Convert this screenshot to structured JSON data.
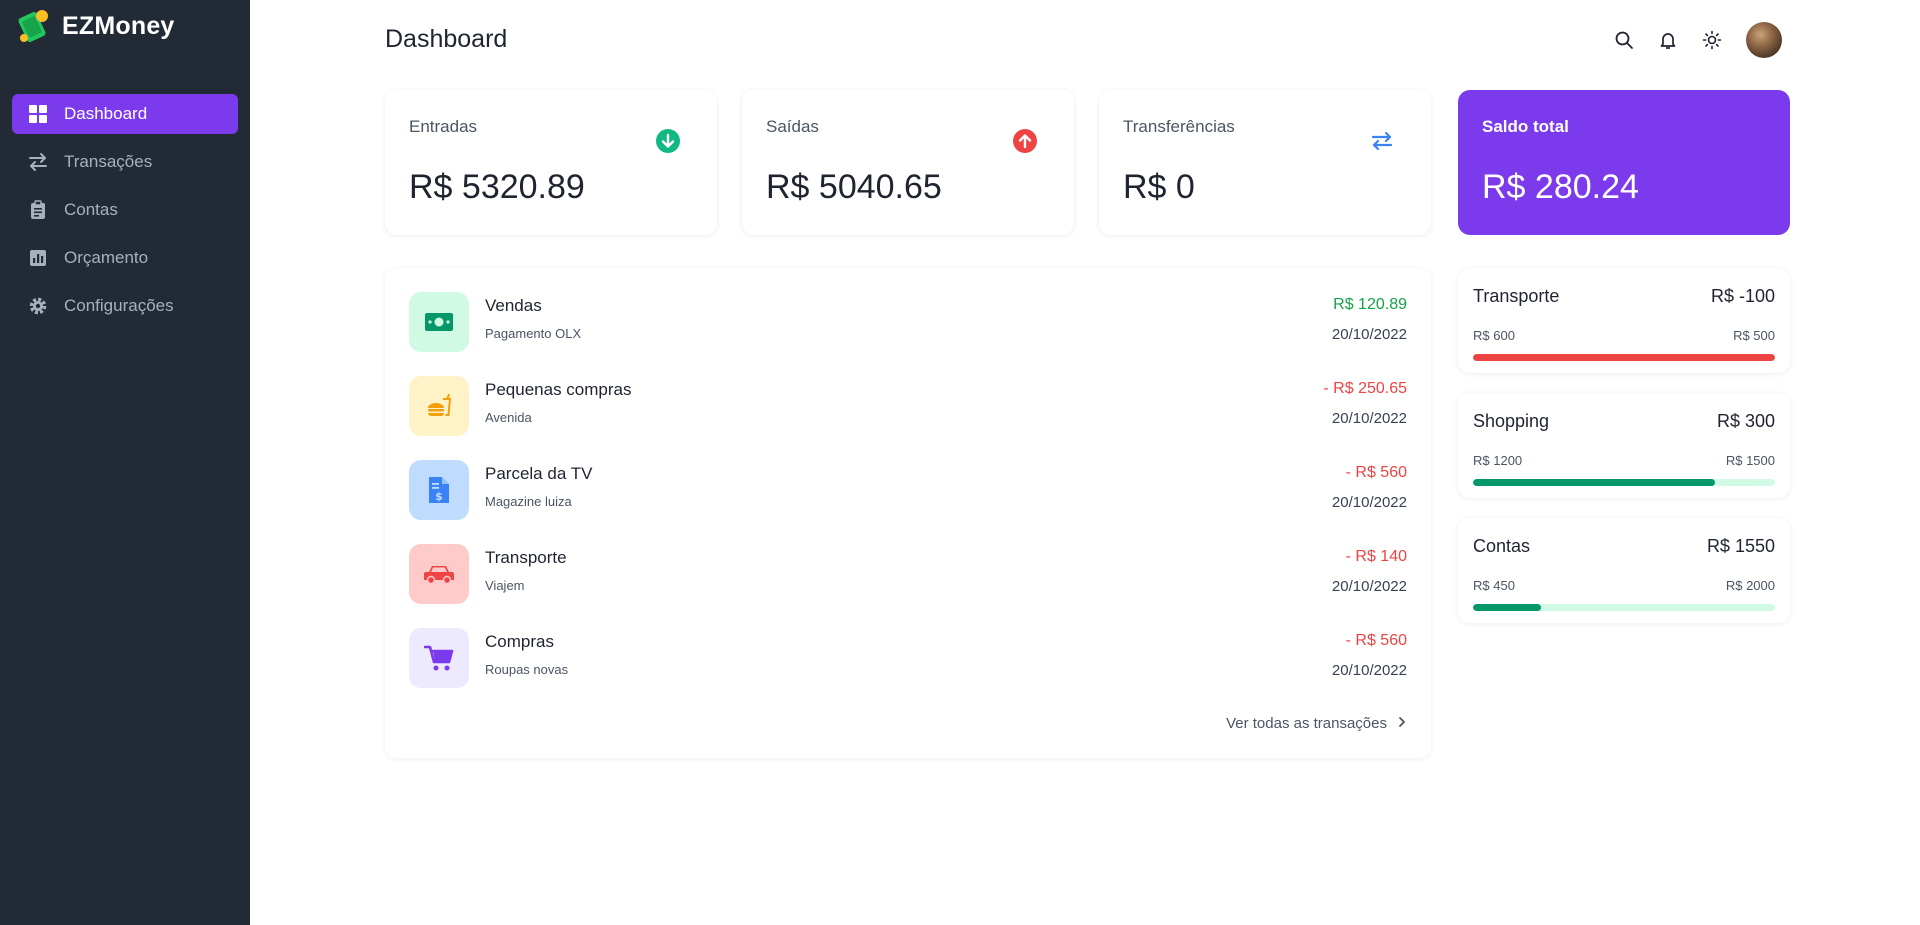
{
  "app": {
    "name": "EZMoney"
  },
  "sidebar": {
    "items": [
      {
        "label": "Dashboard",
        "icon": "grid-icon",
        "active": true
      },
      {
        "label": "Transações",
        "icon": "arrows-exchange-icon",
        "active": false
      },
      {
        "label": "Contas",
        "icon": "clipboard-icon",
        "active": false
      },
      {
        "label": "Orçamento",
        "icon": "bar-chart-icon",
        "active": false
      },
      {
        "label": "Configurações",
        "icon": "gear-icon",
        "active": false
      }
    ]
  },
  "header": {
    "title": "Dashboard",
    "icons": [
      "search-icon",
      "bell-icon",
      "sun-icon",
      "avatar"
    ]
  },
  "stats": {
    "entradas": {
      "label": "Entradas",
      "value": "R$ 5320.89",
      "icon": "arrow-down-circle-icon",
      "color": "#10b981"
    },
    "saidas": {
      "label": "Saídas",
      "value": "R$ 5040.65",
      "icon": "arrow-up-circle-icon",
      "color": "#ef4444"
    },
    "transferencias": {
      "label": "Transferências",
      "value": "R$ 0",
      "icon": "transfer-icon",
      "color": "#3b82f6"
    },
    "saldo": {
      "label": "Saldo total",
      "value": "R$ 280.24",
      "color": "#7c3aed"
    }
  },
  "transactions": [
    {
      "title": "Vendas",
      "subtitle": "Pagamento OLX",
      "amount": "R$ 120.89",
      "date": "20/10/2022",
      "type": "income",
      "icon": "money-icon",
      "bg": "#d1fae5",
      "fg": "#059669"
    },
    {
      "title": "Pequenas compras",
      "subtitle": "Avenida",
      "amount": "- R$ 250.65",
      "date": "20/10/2022",
      "type": "expense",
      "icon": "fastfood-icon",
      "bg": "#fef3c7",
      "fg": "#f59e0b"
    },
    {
      "title": "Parcela da TV",
      "subtitle": "Magazine luiza",
      "amount": "- R$ 560",
      "date": "20/10/2022",
      "type": "expense",
      "icon": "invoice-icon",
      "bg": "#bfdbfe",
      "fg": "#3b82f6"
    },
    {
      "title": "Transporte",
      "subtitle": "Viajem",
      "amount": "- R$ 140",
      "date": "20/10/2022",
      "type": "expense",
      "icon": "car-icon",
      "bg": "#fecaca",
      "fg": "#ef4444"
    },
    {
      "title": "Compras",
      "subtitle": "Roupas novas",
      "amount": "- R$ 560",
      "date": "20/10/2022",
      "type": "expense",
      "icon": "cart-icon",
      "bg": "#ede9fe",
      "fg": "#7c3aed"
    }
  ],
  "see_all": {
    "label": "Ver todas as transações"
  },
  "budgets": [
    {
      "name": "Transporte",
      "value": "R$ -100",
      "spent": "R$ 600",
      "limit": "R$ 500",
      "progress": 1.0,
      "color": "#ef4444"
    },
    {
      "name": "Shopping",
      "value": "R$ 300",
      "spent": "R$ 1200",
      "limit": "R$ 1500",
      "progress": 0.8,
      "color": "#059669"
    },
    {
      "name": "Contas",
      "value": "R$ 1550",
      "spent": "R$ 450",
      "limit": "R$ 2000",
      "progress": 0.225,
      "color": "#059669"
    }
  ]
}
